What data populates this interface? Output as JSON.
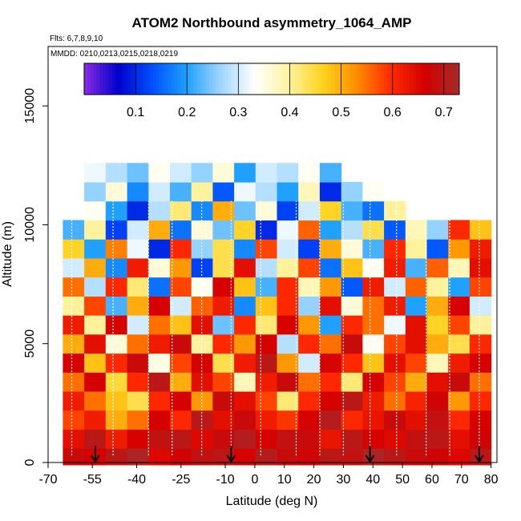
{
  "chart_data": {
    "type": "heatmap",
    "title": "ATOM2 Northbound asymmetry_1064_AMP",
    "flights_label": "Flts: 6,7,8,9,10",
    "mmdd_label": "MMDD: 0210,0213,0215,0218,0219",
    "xlabel": "Latitude (deg N)",
    "ylabel": "Altitude (m)",
    "xlim": [
      -70,
      82
    ],
    "ylim": [
      0,
      17500
    ],
    "x_ticks": [
      -70,
      -55,
      -40,
      -25,
      -10,
      0,
      10,
      20,
      30,
      40,
      50,
      60,
      70,
      80
    ],
    "x_tick_labels": [
      "-70",
      "-55",
      "-40",
      "-25",
      "-10",
      "0",
      "10",
      "20",
      "30",
      "40",
      "50",
      "60",
      "70",
      "80"
    ],
    "y_ticks": [
      0,
      5000,
      10000,
      15000
    ],
    "y_tick_labels": [
      "0",
      "5000",
      "10000",
      "15000"
    ],
    "colorbar": {
      "range": [
        0.0,
        0.73
      ],
      "ticks": [
        0.1,
        0.2,
        0.3,
        0.4,
        0.5,
        0.6,
        0.7
      ],
      "tick_labels": [
        "0.1",
        "0.2",
        "0.3",
        "0.4",
        "0.5",
        "0.6",
        "0.7"
      ],
      "colors": [
        "#8a2be2",
        "#0000cd",
        "#0050ff",
        "#1ea0ff",
        "#9fd6ff",
        "#ffffff",
        "#fff3a0",
        "#ffd21e",
        "#ff8c00",
        "#ff2a00",
        "#d40000",
        "#a52a2a"
      ]
    },
    "grid": false,
    "data_extent": {
      "lat_min": -65,
      "lat_max": 80,
      "alt_min": 0,
      "alt_max": 12500
    },
    "profile_markers_lat": [
      -54,
      -8,
      39,
      76
    ],
    "altitude_bands": [
      {
        "alt": 300,
        "values": [
          0.68,
          0.66,
          0.7,
          0.72,
          0.65,
          0.67,
          0.69,
          0.7,
          0.66,
          0.71,
          0.68,
          0.67,
          0.7,
          0.69,
          0.72,
          0.7,
          0.68,
          0.67,
          0.65,
          0.7
        ]
      },
      {
        "alt": 1000,
        "values": [
          0.64,
          0.7,
          0.62,
          0.66,
          0.69,
          0.7,
          0.65,
          0.68,
          0.71,
          0.66,
          0.69,
          0.68,
          0.63,
          0.7,
          0.66,
          0.65,
          0.69,
          0.7,
          0.64,
          0.67
        ]
      },
      {
        "alt": 1800,
        "values": [
          0.58,
          0.62,
          0.5,
          0.55,
          0.66,
          0.6,
          0.7,
          0.64,
          0.68,
          0.62,
          0.59,
          0.66,
          0.71,
          0.6,
          0.63,
          0.68,
          0.64,
          0.69,
          0.6,
          0.66
        ]
      },
      {
        "alt": 2600,
        "values": [
          0.62,
          0.55,
          0.48,
          0.44,
          0.6,
          0.66,
          0.52,
          0.68,
          0.64,
          0.58,
          0.42,
          0.6,
          0.66,
          0.7,
          0.62,
          0.55,
          0.61,
          0.67,
          0.52,
          0.6
        ]
      },
      {
        "alt": 3400,
        "values": [
          0.55,
          0.66,
          0.45,
          0.6,
          0.7,
          0.5,
          0.64,
          0.58,
          0.38,
          0.62,
          0.68,
          0.55,
          0.6,
          0.42,
          0.66,
          0.58,
          0.5,
          0.64,
          0.68,
          0.55
        ]
      },
      {
        "alt": 4200,
        "values": [
          0.66,
          0.48,
          0.6,
          0.68,
          0.35,
          0.58,
          0.66,
          0.44,
          0.62,
          0.7,
          0.52,
          0.3,
          0.66,
          0.6,
          0.48,
          0.64,
          0.58,
          0.38,
          0.62,
          0.66
        ]
      },
      {
        "alt": 5000,
        "values": [
          0.5,
          0.64,
          0.36,
          0.55,
          0.62,
          0.68,
          0.4,
          0.6,
          0.52,
          0.66,
          0.28,
          0.6,
          0.55,
          0.68,
          0.34,
          0.58,
          0.64,
          0.5,
          0.44,
          0.6
        ]
      },
      {
        "alt": 5800,
        "values": [
          0.62,
          0.4,
          0.66,
          0.3,
          0.55,
          0.48,
          0.64,
          0.24,
          0.6,
          0.42,
          0.66,
          0.52,
          0.2,
          0.6,
          0.55,
          0.32,
          0.64,
          0.46,
          0.58,
          0.4
        ]
      },
      {
        "alt": 6600,
        "values": [
          0.4,
          0.58,
          0.22,
          0.5,
          0.66,
          0.3,
          0.56,
          0.62,
          0.18,
          0.48,
          0.6,
          0.26,
          0.64,
          0.36,
          0.55,
          0.62,
          0.2,
          0.5,
          0.66,
          0.3
        ]
      },
      {
        "alt": 7400,
        "values": [
          0.55,
          0.28,
          0.6,
          0.42,
          0.16,
          0.58,
          0.34,
          0.66,
          0.48,
          0.22,
          0.6,
          0.38,
          0.52,
          0.14,
          0.62,
          0.3,
          0.56,
          0.4,
          0.2,
          0.58
        ]
      },
      {
        "alt": 8200,
        "values": [
          0.3,
          0.5,
          0.18,
          0.62,
          0.36,
          0.52,
          0.12,
          0.44,
          0.64,
          0.28,
          0.4,
          0.58,
          0.16,
          0.48,
          0.34,
          0.62,
          0.22,
          0.56,
          0.38,
          0.64
        ]
      },
      {
        "alt": 9000,
        "values": [
          0.46,
          0.2,
          0.54,
          0.32,
          0.1,
          0.6,
          0.26,
          0.44,
          0.18,
          0.58,
          0.3,
          0.12,
          0.5,
          0.36,
          0.22,
          0.6,
          0.4,
          0.14,
          0.52,
          0.62
        ]
      },
      {
        "alt": 9800,
        "values": [
          0.22,
          0.4,
          0.12,
          0.3,
          0.5,
          0.16,
          0.36,
          0.24,
          0.46,
          0.1,
          0.32,
          0.56,
          0.2,
          0.28,
          0.44,
          0.14,
          0.38,
          0.26,
          0.6,
          0.48
        ]
      },
      {
        "alt": 10600,
        "values": [
          null,
          0.34,
          0.2,
          0.1,
          0.28,
          0.42,
          0.18,
          0.5,
          0.24,
          0.36,
          0.12,
          0.3,
          0.46,
          0.22,
          0.16,
          0.4,
          null,
          null,
          null,
          null
        ]
      },
      {
        "alt": 11400,
        "values": [
          null,
          0.26,
          0.36,
          0.18,
          0.3,
          0.22,
          0.4,
          0.14,
          0.32,
          0.28,
          0.2,
          0.38,
          0.1,
          0.26,
          0.34,
          null,
          null,
          null,
          null,
          null
        ]
      },
      {
        "alt": 12200,
        "values": [
          null,
          0.32,
          0.28,
          0.24,
          0.34,
          0.3,
          0.26,
          0.36,
          0.2,
          0.3,
          0.28,
          0.34,
          0.22,
          null,
          null,
          null,
          null,
          null,
          null,
          null
        ]
      }
    ]
  }
}
